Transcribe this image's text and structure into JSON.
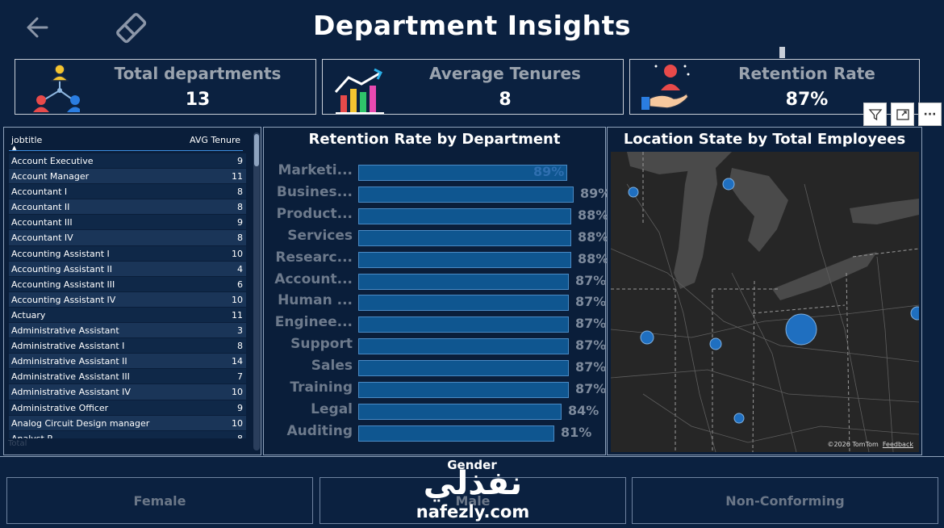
{
  "header": {
    "title": "Department Insights",
    "back_icon": "arrow-left-icon",
    "clear_icon": "eraser-icon"
  },
  "kpis": [
    {
      "label": "Total departments",
      "value": "13",
      "icon": "org-chart-people-icon"
    },
    {
      "label": "Average Tenures",
      "value": "8",
      "icon": "bar-chart-growth-icon"
    },
    {
      "label": "Retention Rate",
      "value": "87%",
      "icon": "hand-person-icon"
    }
  ],
  "visual_header": {
    "filter_icon": "filter-icon",
    "focus_icon": "focus-mode-icon",
    "more_label": "···"
  },
  "table": {
    "columns": [
      "jobtitle",
      "AVG Tenure"
    ],
    "rows": [
      {
        "jobtitle": "Account Executive",
        "avg": "9"
      },
      {
        "jobtitle": "Account Manager",
        "avg": "11"
      },
      {
        "jobtitle": "Accountant I",
        "avg": "8"
      },
      {
        "jobtitle": "Accountant II",
        "avg": "8"
      },
      {
        "jobtitle": "Accountant III",
        "avg": "9"
      },
      {
        "jobtitle": "Accountant IV",
        "avg": "8"
      },
      {
        "jobtitle": "Accounting Assistant I",
        "avg": "10"
      },
      {
        "jobtitle": "Accounting Assistant II",
        "avg": "4"
      },
      {
        "jobtitle": "Accounting Assistant III",
        "avg": "6"
      },
      {
        "jobtitle": "Accounting Assistant IV",
        "avg": "10"
      },
      {
        "jobtitle": "Actuary",
        "avg": "11"
      },
      {
        "jobtitle": "Administrative Assistant",
        "avg": "3"
      },
      {
        "jobtitle": "Administrative Assistant I",
        "avg": "8"
      },
      {
        "jobtitle": "Administrative Assistant II",
        "avg": "14"
      },
      {
        "jobtitle": "Administrative Assistant III",
        "avg": "7"
      },
      {
        "jobtitle": "Administrative Assistant IV",
        "avg": "10"
      },
      {
        "jobtitle": "Administrative Officer",
        "avg": "9"
      },
      {
        "jobtitle": "Analog Circuit Design manager",
        "avg": "10"
      }
    ],
    "partial_row": {
      "jobtitle": "Analyst P...",
      "avg": "8"
    },
    "total_label": "Total"
  },
  "chart_data": {
    "type": "bar",
    "title": "Retention Rate by Department",
    "orientation": "horizontal",
    "categories": [
      "Marketi...",
      "Busines...",
      "Product...",
      "Services",
      "Researc...",
      "Account...",
      "Human ...",
      "Enginee...",
      "Support",
      "Sales",
      "Training",
      "Legal",
      "Auditing"
    ],
    "values": [
      89,
      89,
      88,
      88,
      88,
      87,
      87,
      87,
      87,
      87,
      87,
      84,
      81
    ],
    "value_labels": [
      "89%",
      "89%",
      "88%",
      "88%",
      "88%",
      "87%",
      "87%",
      "87%",
      "87%",
      "87%",
      "87%",
      "84%",
      "81%"
    ],
    "xlim": [
      0,
      100
    ],
    "grid": false,
    "colors": {
      "bar": "#0f5690",
      "bar_border": "#4a8ac4"
    }
  },
  "map": {
    "title": "Location State by Total Employees",
    "copyright": "©2026 TomTom",
    "feedback": "Feedback",
    "bubble_color": "#1f6fc0"
  },
  "gender": {
    "title": "Gender",
    "options": [
      "Female",
      "Male",
      "Non-Conforming"
    ]
  },
  "watermark": {
    "arabic": "نفذلي",
    "latin": "nafezly.com"
  }
}
